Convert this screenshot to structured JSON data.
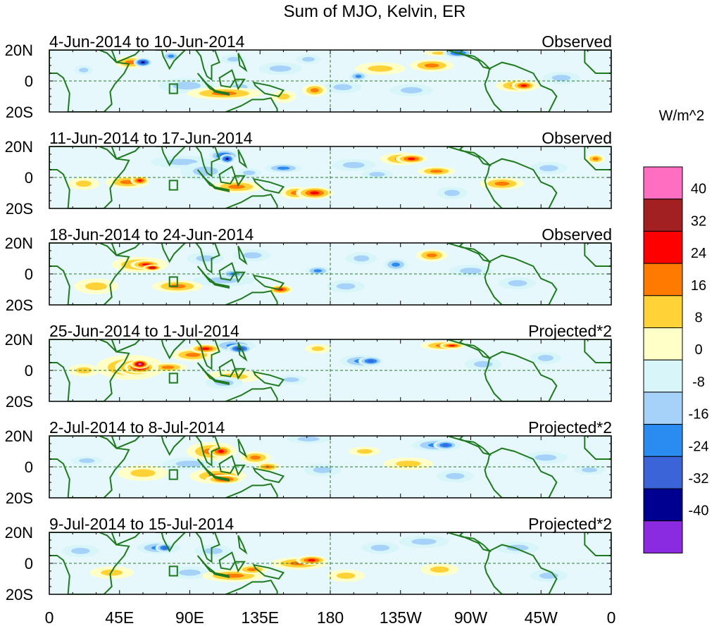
{
  "title": "Sum of MJO, Kelvin, ER",
  "colorbar": {
    "unit": "W/m^2",
    "levels": [
      "40",
      "32",
      "24",
      "16",
      "8",
      "0",
      "-8",
      "-16",
      "-24",
      "-32",
      "-40"
    ],
    "colors": [
      "#ff6ec0",
      "#a21f22",
      "#ff0000",
      "#ff7a00",
      "#ffd238",
      "#ffffc8",
      "#d8f6fa",
      "#a6d2fa",
      "#2a8cf0",
      "#3a64d8",
      "#000090",
      "#8a2be2"
    ]
  },
  "longitude_ticks": [
    "0",
    "45E",
    "90E",
    "135E",
    "180",
    "135W",
    "90W",
    "45W",
    "0"
  ],
  "latitude_ticks": [
    "20N",
    "0",
    "20S"
  ],
  "panels": [
    {
      "date_range": "4-Jun-2014 to 10-Jun-2014",
      "status": "Observed"
    },
    {
      "date_range": "11-Jun-2014 to 17-Jun-2014",
      "status": "Observed"
    },
    {
      "date_range": "18-Jun-2014 to 24-Jun-2014",
      "status": "Observed"
    },
    {
      "date_range": "25-Jun-2014 to 1-Jul-2014",
      "status": "Projected*2"
    },
    {
      "date_range": "2-Jul-2014 to 8-Jul-2014",
      "status": "Projected*2"
    },
    {
      "date_range": "9-Jul-2014 to 15-Jul-2014",
      "status": "Projected*2"
    }
  ],
  "anomaly_blobs": [
    [
      [
        52,
        12,
        10,
        4,
        16
      ],
      [
        60,
        12,
        6,
        3,
        -32
      ],
      [
        22,
        7,
        6,
        3,
        -8
      ],
      [
        78,
        16,
        6,
        3,
        -16
      ],
      [
        88,
        -3,
        18,
        5,
        -8
      ],
      [
        112,
        -8,
        24,
        4,
        16
      ],
      [
        118,
        14,
        8,
        3,
        -8
      ],
      [
        122,
        -4,
        10,
        4,
        -8
      ],
      [
        148,
        8,
        14,
        4,
        -8
      ],
      [
        150,
        -10,
        8,
        4,
        8
      ],
      [
        166,
        14,
        8,
        3,
        -8
      ],
      [
        170,
        -6,
        8,
        4,
        16
      ],
      [
        188,
        -4,
        12,
        4,
        -8
      ],
      [
        198,
        3,
        6,
        3,
        -16
      ],
      [
        212,
        8,
        16,
        4,
        8
      ],
      [
        232,
        -6,
        14,
        4,
        -8
      ],
      [
        245,
        10,
        14,
        4,
        16
      ],
      [
        250,
        18,
        10,
        2,
        8
      ],
      [
        262,
        18,
        10,
        3,
        -24
      ],
      [
        300,
        -3,
        14,
        4,
        16
      ],
      [
        304,
        -3,
        8,
        3,
        24
      ],
      [
        328,
        2,
        12,
        4,
        -8
      ]
    ],
    [
      [
        22,
        -4,
        10,
        4,
        8
      ],
      [
        50,
        -3,
        14,
        4,
        16
      ],
      [
        58,
        -2,
        6,
        3,
        24
      ],
      [
        85,
        10,
        20,
        4,
        -8
      ],
      [
        100,
        4,
        16,
        6,
        -8
      ],
      [
        112,
        14,
        10,
        4,
        -24
      ],
      [
        114,
        12,
        5,
        3,
        -32
      ],
      [
        120,
        -6,
        16,
        4,
        16
      ],
      [
        128,
        3,
        8,
        3,
        -8
      ],
      [
        150,
        6,
        12,
        3,
        -16
      ],
      [
        158,
        -10,
        10,
        4,
        16
      ],
      [
        170,
        -10,
        12,
        4,
        24
      ],
      [
        195,
        8,
        14,
        4,
        -8
      ],
      [
        210,
        2,
        10,
        3,
        -8
      ],
      [
        226,
        12,
        14,
        4,
        16
      ],
      [
        232,
        12,
        10,
        3,
        24
      ],
      [
        248,
        4,
        12,
        3,
        16
      ],
      [
        258,
        -10,
        10,
        4,
        -8
      ],
      [
        290,
        -4,
        14,
        4,
        16
      ],
      [
        320,
        6,
        12,
        4,
        -8
      ],
      [
        350,
        12,
        6,
        3,
        16
      ]
    ],
    [
      [
        30,
        -8,
        14,
        5,
        8
      ],
      [
        58,
        6,
        18,
        5,
        16
      ],
      [
        62,
        6,
        10,
        3,
        24
      ],
      [
        66,
        4,
        6,
        2,
        32
      ],
      [
        82,
        -8,
        16,
        4,
        16
      ],
      [
        100,
        10,
        12,
        4,
        -8
      ],
      [
        112,
        -4,
        20,
        4,
        -8
      ],
      [
        118,
        0,
        8,
        3,
        -16
      ],
      [
        130,
        12,
        12,
        4,
        -8
      ],
      [
        148,
        -10,
        8,
        3,
        24
      ],
      [
        172,
        2,
        8,
        3,
        -16
      ],
      [
        190,
        -8,
        12,
        4,
        -8
      ],
      [
        200,
        10,
        10,
        4,
        -8
      ],
      [
        222,
        6,
        8,
        4,
        -16
      ],
      [
        245,
        12,
        10,
        4,
        16
      ],
      [
        270,
        2,
        14,
        4,
        -8
      ],
      [
        300,
        -6,
        12,
        4,
        -8
      ]
    ],
    [
      [
        22,
        0,
        10,
        4,
        8
      ],
      [
        52,
        2,
        22,
        8,
        16
      ],
      [
        56,
        2,
        14,
        6,
        24
      ],
      [
        58,
        2,
        10,
        4,
        32
      ],
      [
        58,
        4,
        6,
        3,
        40
      ],
      [
        76,
        2,
        12,
        3,
        16
      ],
      [
        92,
        10,
        14,
        4,
        16
      ],
      [
        100,
        14,
        10,
        3,
        24
      ],
      [
        118,
        16,
        14,
        4,
        -16
      ],
      [
        122,
        14,
        8,
        3,
        -32
      ],
      [
        118,
        -4,
        18,
        4,
        8
      ],
      [
        112,
        -8,
        12,
        4,
        -8
      ],
      [
        155,
        -6,
        10,
        3,
        -8
      ],
      [
        172,
        14,
        8,
        3,
        8
      ],
      [
        200,
        6,
        14,
        4,
        -16
      ],
      [
        206,
        6,
        8,
        3,
        -24
      ],
      [
        252,
        16,
        14,
        3,
        16
      ],
      [
        258,
        16,
        8,
        2,
        24
      ],
      [
        278,
        4,
        12,
        4,
        -8
      ],
      [
        318,
        8,
        10,
        4,
        -8
      ]
    ],
    [
      [
        24,
        4,
        10,
        3,
        -8
      ],
      [
        60,
        -4,
        16,
        5,
        8
      ],
      [
        90,
        2,
        18,
        4,
        -8
      ],
      [
        104,
        10,
        16,
        6,
        16
      ],
      [
        110,
        10,
        8,
        4,
        24
      ],
      [
        108,
        -6,
        18,
        5,
        16
      ],
      [
        112,
        -8,
        12,
        3,
        24
      ],
      [
        132,
        6,
        10,
        4,
        16
      ],
      [
        140,
        0,
        8,
        3,
        16
      ],
      [
        166,
        18,
        14,
        3,
        -8
      ],
      [
        175,
        -2,
        12,
        4,
        -8
      ],
      [
        202,
        10,
        10,
        3,
        8
      ],
      [
        230,
        2,
        16,
        4,
        8
      ],
      [
        248,
        14,
        16,
        4,
        -16
      ],
      [
        254,
        14,
        8,
        3,
        -24
      ],
      [
        260,
        -6,
        12,
        4,
        -8
      ],
      [
        318,
        6,
        14,
        4,
        -8
      ],
      [
        346,
        -2,
        10,
        3,
        -8
      ]
    ],
    [
      [
        20,
        8,
        12,
        4,
        -8
      ],
      [
        40,
        -6,
        14,
        4,
        8
      ],
      [
        70,
        10,
        14,
        4,
        -16
      ],
      [
        74,
        10,
        6,
        3,
        -24
      ],
      [
        90,
        -6,
        14,
        4,
        -8
      ],
      [
        105,
        8,
        12,
        4,
        -8
      ],
      [
        118,
        -8,
        20,
        4,
        16
      ],
      [
        130,
        -4,
        10,
        3,
        16
      ],
      [
        160,
        0,
        18,
        4,
        16
      ],
      [
        168,
        2,
        10,
        3,
        24
      ],
      [
        190,
        -8,
        12,
        4,
        8
      ],
      [
        212,
        10,
        12,
        4,
        -8
      ],
      [
        240,
        14,
        16,
        4,
        -8
      ],
      [
        250,
        -4,
        12,
        4,
        8
      ],
      [
        300,
        10,
        14,
        4,
        -8
      ],
      [
        320,
        -8,
        12,
        4,
        -8
      ]
    ]
  ]
}
